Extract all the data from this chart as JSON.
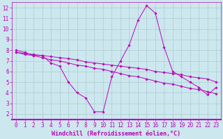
{
  "xlabel": "Windchill (Refroidissement éolien,°C)",
  "bg_color": "#cce8ee",
  "line_color": "#bb00bb",
  "grid_color": "#aacccc",
  "xlim": [
    -0.5,
    23.5
  ],
  "ylim": [
    1.5,
    12.5
  ],
  "xticks": [
    0,
    1,
    2,
    3,
    4,
    5,
    6,
    7,
    8,
    9,
    10,
    11,
    12,
    13,
    14,
    15,
    16,
    17,
    18,
    19,
    20,
    21,
    22,
    23
  ],
  "yticks": [
    2,
    3,
    4,
    5,
    6,
    7,
    8,
    9,
    10,
    11,
    12
  ],
  "series1_x": [
    0,
    1,
    2,
    3,
    4,
    5,
    6,
    7,
    8,
    9,
    10,
    11,
    12,
    13,
    14,
    15,
    16,
    17,
    18,
    19,
    20,
    21,
    22,
    23
  ],
  "series1_y": [
    8.0,
    7.8,
    7.5,
    7.5,
    6.8,
    6.5,
    5.0,
    4.0,
    3.5,
    2.2,
    2.2,
    5.5,
    7.0,
    8.5,
    10.8,
    12.2,
    11.5,
    8.3,
    6.0,
    5.5,
    5.0,
    4.5,
    3.8,
    4.5
  ],
  "series2_x": [
    0,
    1,
    2,
    3,
    4,
    5,
    6,
    7,
    8,
    9,
    10,
    11,
    12,
    13,
    14,
    15,
    16,
    17,
    18,
    19,
    20,
    21,
    22,
    23
  ],
  "series2_y": [
    7.8,
    7.6,
    7.5,
    7.3,
    7.1,
    7.0,
    6.8,
    6.6,
    6.5,
    6.3,
    6.2,
    6.0,
    5.8,
    5.6,
    5.5,
    5.3,
    5.1,
    4.9,
    4.8,
    4.6,
    4.4,
    4.3,
    4.1,
    3.9
  ],
  "series3_x": [
    0,
    1,
    2,
    3,
    4,
    5,
    6,
    7,
    8,
    9,
    10,
    11,
    12,
    13,
    14,
    15,
    16,
    17,
    18,
    19,
    20,
    21,
    22,
    23
  ],
  "series3_y": [
    7.8,
    7.7,
    7.6,
    7.5,
    7.4,
    7.3,
    7.2,
    7.1,
    6.9,
    6.8,
    6.7,
    6.6,
    6.5,
    6.4,
    6.3,
    6.2,
    6.0,
    5.9,
    5.8,
    5.7,
    5.5,
    5.4,
    5.3,
    5.0
  ],
  "xlabel_fontsize": 6,
  "tick_fontsize": 5.5,
  "lw": 0.7,
  "ms": 1.8
}
